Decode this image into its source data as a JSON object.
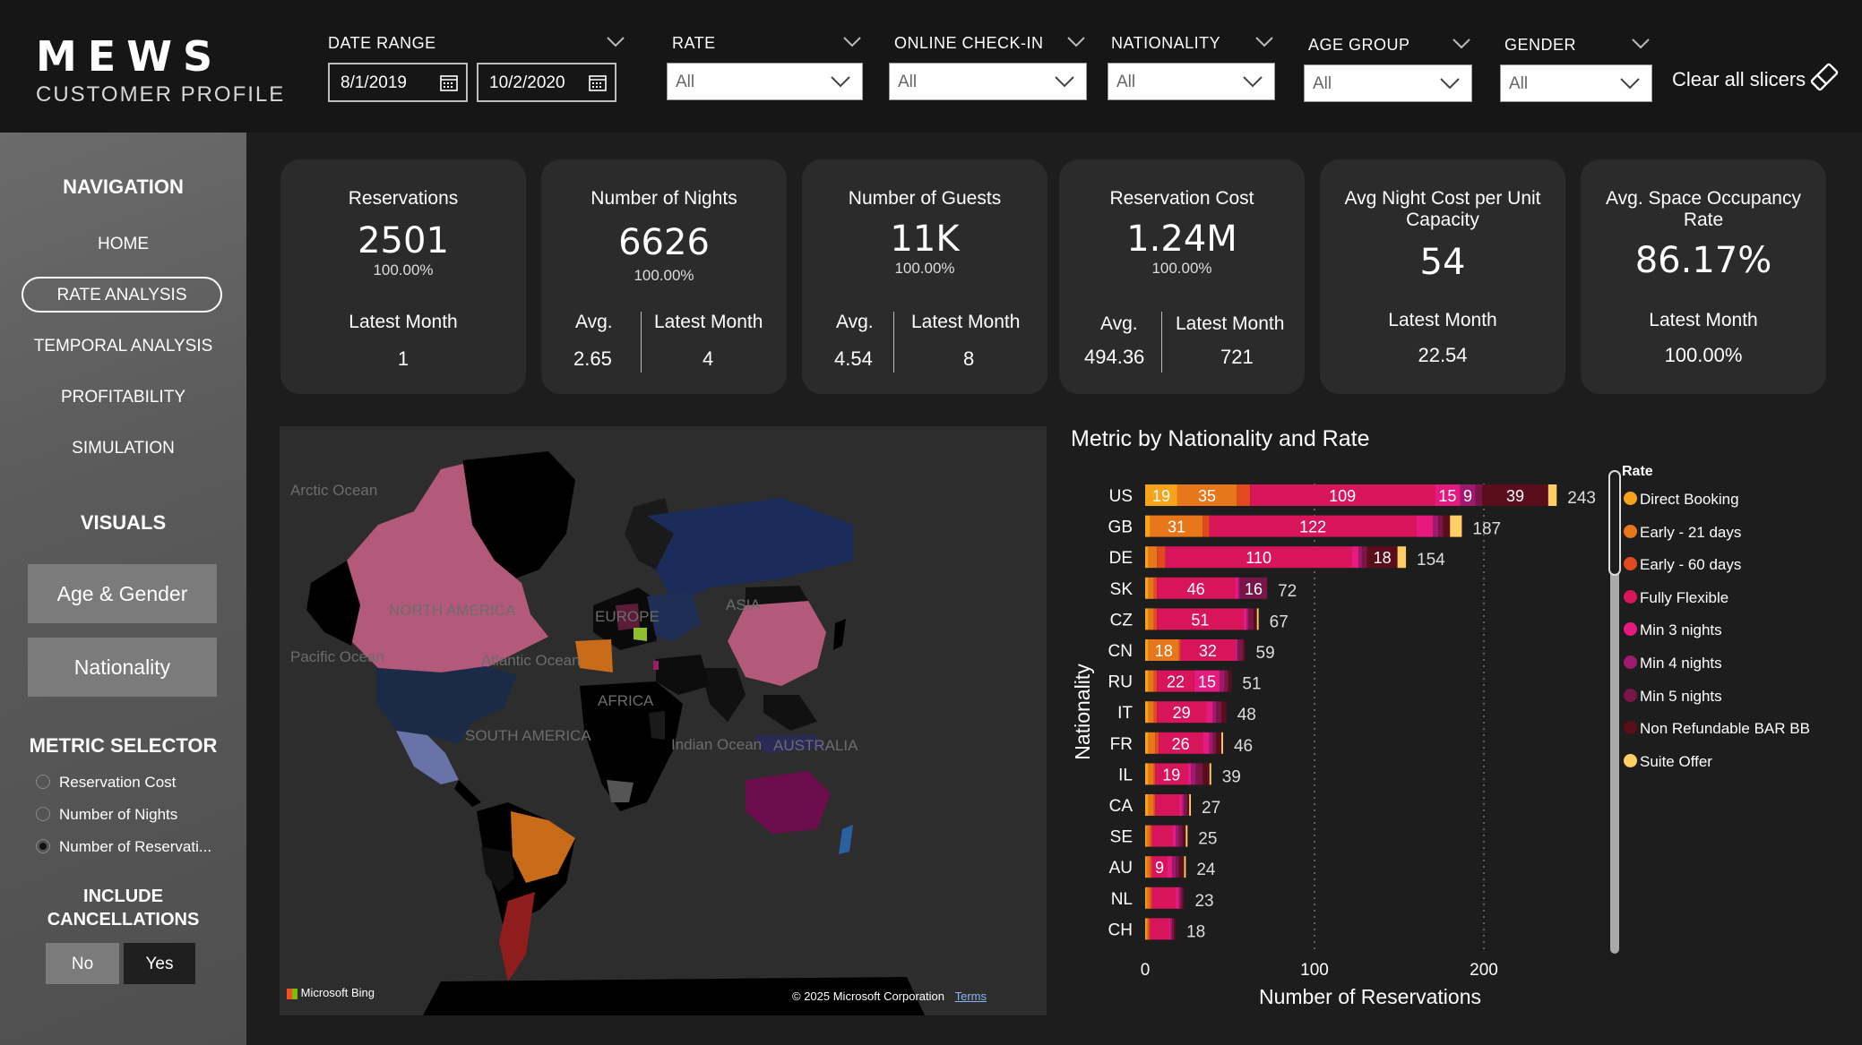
{
  "header": {
    "logo": "MEWS",
    "subtitle": "CUSTOMER PROFILE",
    "date_range": {
      "title": "DATE RANGE",
      "start": "8/1/2019",
      "end": "10/2/2020"
    },
    "slicers": [
      {
        "title": "RATE",
        "value": "All"
      },
      {
        "title": "ONLINE CHECK-IN",
        "value": "All"
      },
      {
        "title": "NATIONALITY",
        "value": "All"
      },
      {
        "title": "AGE GROUP",
        "value": "All"
      },
      {
        "title": "GENDER",
        "value": "All"
      }
    ],
    "clear_label": "Clear all slicers"
  },
  "sidebar": {
    "nav_heading": "NAVIGATION",
    "nav_items": [
      "HOME",
      "RATE ANALYSIS",
      "TEMPORAL ANALYSIS",
      "PROFITABILITY",
      "SIMULATION"
    ],
    "visuals_heading": "VISUALS",
    "visual_buttons": [
      "Age & Gender",
      "Nationality"
    ],
    "metric_heading": "METRIC SELECTOR",
    "metrics": [
      "Reservation Cost",
      "Number of Nights",
      "Number of Reservati..."
    ],
    "metric_selected": 2,
    "cancel_heading_1": "INCLUDE",
    "cancel_heading_2": "CANCELLATIONS",
    "cancel_no": "No",
    "cancel_yes": "Yes"
  },
  "kpis": [
    {
      "title": "Reservations",
      "title2": "",
      "value": "2501",
      "pct": "100.00%",
      "latest_label": "Latest Month",
      "latest": "1"
    },
    {
      "title": "Number of Nights",
      "value": "6626",
      "pct": "100.00%",
      "avg_label": "Avg.",
      "avg": "2.65",
      "latest_label": "Latest Month",
      "latest": "4"
    },
    {
      "title": "Number of Guests",
      "value": "11K",
      "pct": "100.00%",
      "avg_label": "Avg.",
      "avg": "4.54",
      "latest_label": "Latest Month",
      "latest": "8"
    },
    {
      "title": "Reservation Cost",
      "value": "1.24M",
      "pct": "100.00%",
      "avg_label": "Avg.",
      "avg": "494.36",
      "latest_label": "Latest Month",
      "latest": "721"
    },
    {
      "title": "Avg Night Cost per Unit",
      "title2": "Capacity",
      "value": "54",
      "latest_label": "Latest Month",
      "latest": "22.54"
    },
    {
      "title": "Avg. Space Occupancy",
      "title2": "Rate",
      "value": "86.17%",
      "latest_label": "Latest Month",
      "latest": "100.00%"
    }
  ],
  "map": {
    "labels": [
      "Arctic Ocean",
      "NORTH AMERICA",
      "Pacific Ocean",
      "Atlantic Ocean",
      "EUROPE",
      "ASIA",
      "AFRICA",
      "SOUTH AMERICA",
      "Indian Ocean",
      "AUSTRALIA"
    ],
    "attribution": "Microsoft Bing",
    "copyright": "© 2025 Microsoft Corporation",
    "terms": "Terms"
  },
  "chart_data": {
    "type": "bar",
    "orientation": "horizontal",
    "stacked": true,
    "title": "Metric by Nationality and Rate",
    "xlabel": "Number of Reservations",
    "ylabel": "Nationality",
    "xlim": [
      0,
      270
    ],
    "xticks": [
      0,
      100,
      200
    ],
    "categories": [
      "US",
      "GB",
      "DE",
      "SK",
      "CZ",
      "CN",
      "RU",
      "IT",
      "FR",
      "IL",
      "CA",
      "SE",
      "AU",
      "NL",
      "CH"
    ],
    "totals": [
      243,
      187,
      154,
      72,
      67,
      59,
      51,
      48,
      46,
      39,
      27,
      25,
      24,
      23,
      18
    ],
    "legend_title": "Rate",
    "series": [
      {
        "name": "Direct Booking",
        "color": "#f7a21b",
        "values": [
          19,
          3,
          2,
          2,
          2,
          2,
          2,
          2,
          2,
          2,
          2,
          1,
          1,
          1,
          1
        ]
      },
      {
        "name": "Early - 21 days",
        "color": "#e8761a",
        "values": [
          35,
          31,
          5,
          3,
          3,
          18,
          3,
          3,
          4,
          3,
          3,
          2,
          2,
          2,
          1
        ]
      },
      {
        "name": "Early - 60 days",
        "color": "#e04a1e",
        "values": [
          8,
          4,
          5,
          2,
          2,
          1,
          2,
          2,
          2,
          1,
          1,
          1,
          1,
          1,
          1
        ]
      },
      {
        "name": "Fully Flexible",
        "color": "#d8155b",
        "values": [
          109,
          122,
          110,
          46,
          51,
          32,
          22,
          29,
          26,
          19,
          14,
          12,
          9,
          14,
          11
        ]
      },
      {
        "name": "Min 3 nights",
        "color": "#e6197e",
        "values": [
          15,
          10,
          4,
          2,
          2,
          1,
          15,
          4,
          4,
          2,
          2,
          2,
          3,
          2,
          1
        ]
      },
      {
        "name": "Min 4 nights",
        "color": "#9e1a6e",
        "values": [
          9,
          3,
          2,
          1,
          1,
          1,
          3,
          2,
          2,
          3,
          1,
          2,
          2,
          1,
          1
        ]
      },
      {
        "name": "Min 5 nights",
        "color": "#7a1548",
        "values": [
          4,
          3,
          3,
          16,
          3,
          3,
          2,
          3,
          2,
          4,
          2,
          2,
          2,
          1,
          1
        ]
      },
      {
        "name": "Non Refundable BAR BB",
        "color": "#5a0d1a",
        "values": [
          39,
          4,
          18,
          0,
          2,
          1,
          2,
          3,
          3,
          4,
          1,
          2,
          3,
          1,
          1
        ]
      },
      {
        "name": "Suite Offer",
        "color": "#ffcf66",
        "values": [
          5,
          7,
          5,
          0,
          1,
          0,
          0,
          0,
          1,
          1,
          1,
          1,
          1,
          0,
          0
        ]
      }
    ],
    "labels": [
      [
        19,
        35,
        null,
        109,
        15,
        9,
        null,
        39,
        null
      ],
      [
        null,
        31,
        null,
        122,
        null,
        null,
        null,
        null,
        null
      ],
      [
        null,
        null,
        null,
        110,
        null,
        null,
        null,
        18,
        null
      ],
      [
        null,
        null,
        null,
        46,
        null,
        null,
        16,
        null,
        null
      ],
      [
        null,
        null,
        null,
        51,
        null,
        null,
        null,
        null,
        null
      ],
      [
        null,
        18,
        null,
        32,
        null,
        null,
        null,
        null,
        null
      ],
      [
        null,
        null,
        null,
        22,
        15,
        null,
        null,
        null,
        null
      ],
      [
        null,
        null,
        null,
        29,
        null,
        null,
        null,
        null,
        null
      ],
      [
        null,
        null,
        null,
        26,
        null,
        null,
        null,
        null,
        null
      ],
      [
        null,
        null,
        null,
        19,
        null,
        null,
        null,
        null,
        null
      ],
      [
        null,
        null,
        null,
        null,
        null,
        null,
        null,
        null,
        null
      ],
      [
        null,
        null,
        null,
        null,
        null,
        null,
        null,
        null,
        null
      ],
      [
        null,
        null,
        null,
        9,
        null,
        null,
        null,
        null,
        null
      ],
      [
        null,
        null,
        null,
        null,
        null,
        null,
        null,
        null,
        null
      ],
      [
        null,
        null,
        null,
        null,
        null,
        null,
        null,
        null,
        null
      ]
    ]
  }
}
